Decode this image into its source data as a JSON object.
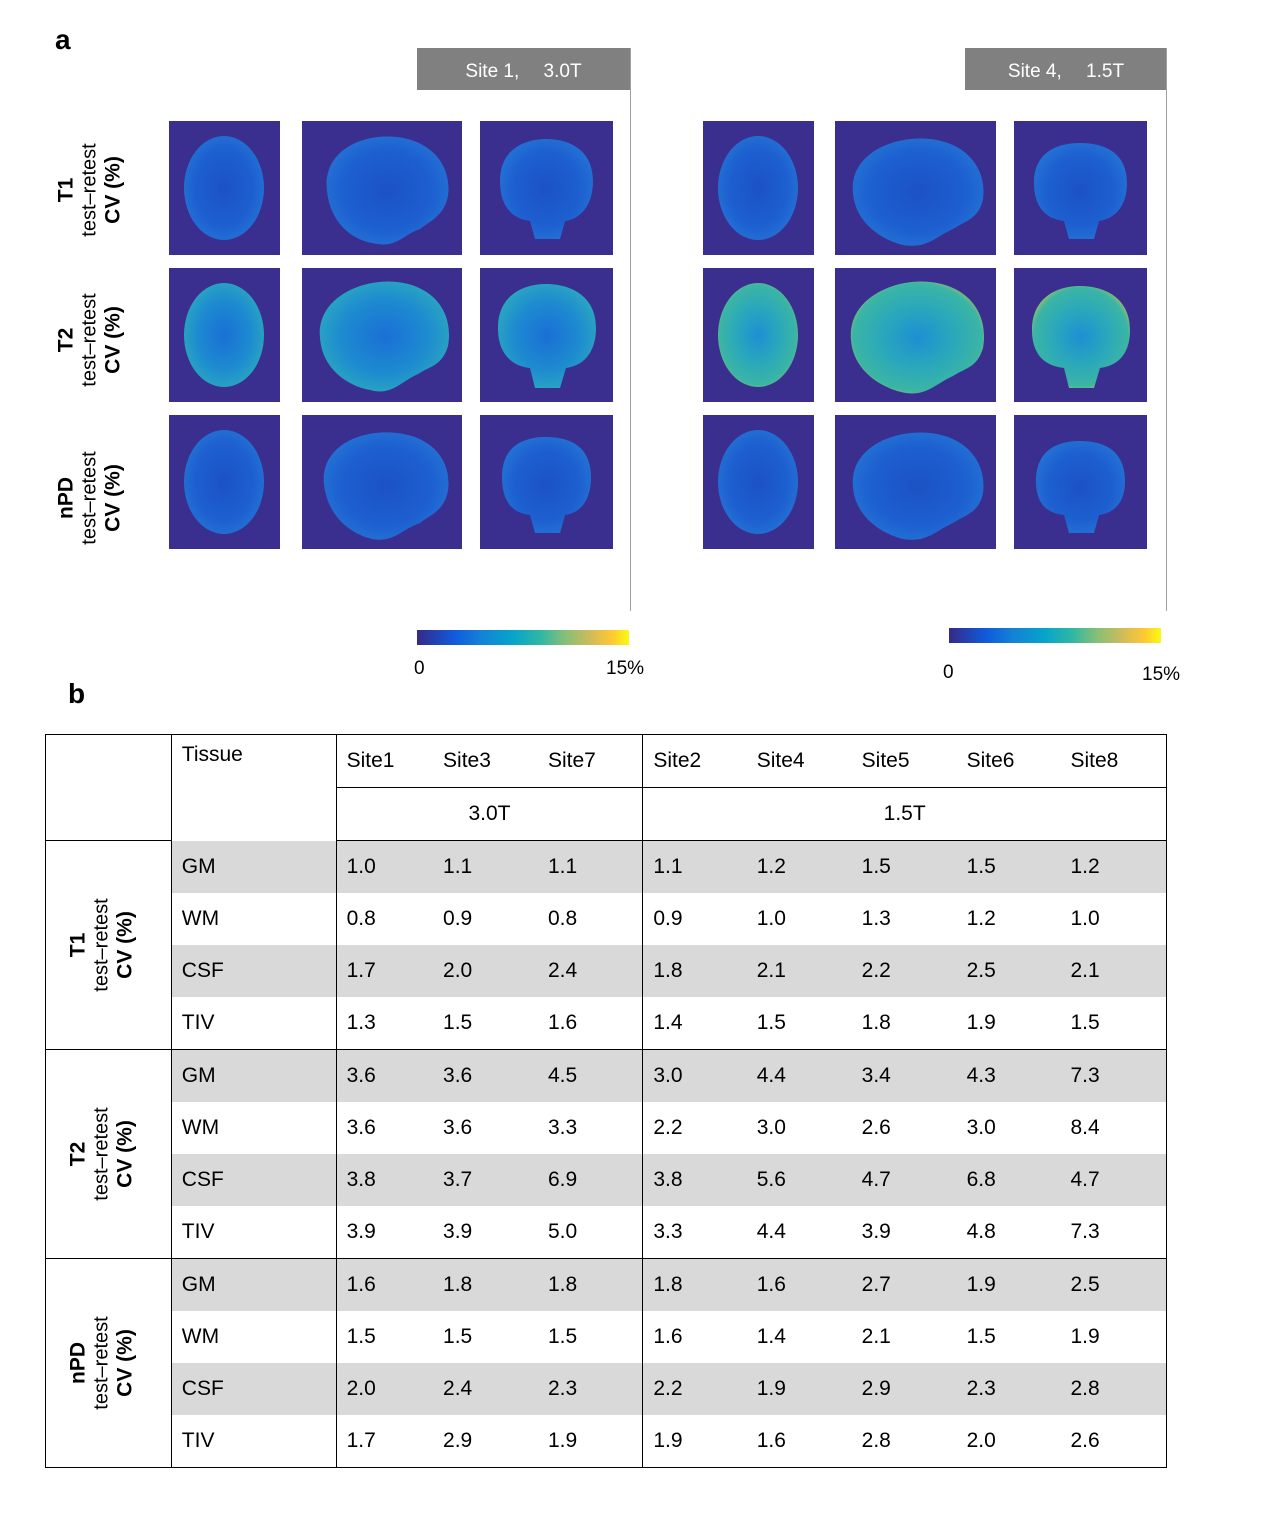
{
  "panel_a": {
    "letter": "a",
    "sites": [
      {
        "label": "Site 1,　 3.0T"
      },
      {
        "label": "Site 4,　 1.5T"
      }
    ],
    "rows": [
      {
        "modality": "T1",
        "line2": "test–retest",
        "line3": "CV (%)"
      },
      {
        "modality": "T2",
        "line2": "test–retest",
        "line3": "CV (%)"
      },
      {
        "modality": "nPD",
        "line2": "test–retest",
        "line3": "CV (%)"
      }
    ],
    "colorbar": {
      "min_label": "0",
      "max_label": "15%"
    }
  },
  "panel_b": {
    "letter": "b",
    "header": {
      "tissue": "Tissue",
      "sites": [
        "Site1",
        "Site3",
        "Site7",
        "Site2",
        "Site4",
        "Site5",
        "Site6",
        "Site8"
      ],
      "groups": [
        "3.0T",
        "1.5T"
      ]
    },
    "blocks": [
      {
        "modality": "T1",
        "line2": "test–retest",
        "line3": "CV (%)",
        "rows": [
          {
            "tissue": "GM",
            "values": [
              "1.0",
              "1.1",
              "1.1",
              "1.1",
              "1.2",
              "1.5",
              "1.5",
              "1.2"
            ]
          },
          {
            "tissue": "WM",
            "values": [
              "0.8",
              "0.9",
              "0.8",
              "0.9",
              "1.0",
              "1.3",
              "1.2",
              "1.0"
            ]
          },
          {
            "tissue": "CSF",
            "values": [
              "1.7",
              "2.0",
              "2.4",
              "1.8",
              "2.1",
              "2.2",
              "2.5",
              "2.1"
            ]
          },
          {
            "tissue": "TIV",
            "values": [
              "1.3",
              "1.5",
              "1.6",
              "1.4",
              "1.5",
              "1.8",
              "1.9",
              "1.5"
            ]
          }
        ]
      },
      {
        "modality": "T2",
        "line2": "test–retest",
        "line3": "CV (%)",
        "rows": [
          {
            "tissue": "GM",
            "values": [
              "3.6",
              "3.6",
              "4.5",
              "3.0",
              "4.4",
              "3.4",
              "4.3",
              "7.3"
            ]
          },
          {
            "tissue": "WM",
            "values": [
              "3.6",
              "3.6",
              "3.3",
              "2.2",
              "3.0",
              "2.6",
              "3.0",
              "8.4"
            ]
          },
          {
            "tissue": "CSF",
            "values": [
              "3.8",
              "3.7",
              "6.9",
              "3.8",
              "5.6",
              "4.7",
              "6.8",
              "4.7"
            ]
          },
          {
            "tissue": "TIV",
            "values": [
              "3.9",
              "3.9",
              "5.0",
              "3.3",
              "4.4",
              "3.9",
              "4.8",
              "7.3"
            ]
          }
        ]
      },
      {
        "modality": "nPD",
        "line2": "test–retest",
        "line3": "CV (%)",
        "rows": [
          {
            "tissue": "GM",
            "values": [
              "1.6",
              "1.8",
              "1.8",
              "1.8",
              "1.6",
              "2.7",
              "1.9",
              "2.5"
            ]
          },
          {
            "tissue": "WM",
            "values": [
              "1.5",
              "1.5",
              "1.5",
              "1.6",
              "1.4",
              "2.1",
              "1.5",
              "1.9"
            ]
          },
          {
            "tissue": "CSF",
            "values": [
              "2.0",
              "2.4",
              "2.3",
              "2.2",
              "1.9",
              "2.9",
              "2.3",
              "2.8"
            ]
          },
          {
            "tissue": "TIV",
            "values": [
              "1.7",
              "2.9",
              "1.9",
              "1.9",
              "1.6",
              "2.8",
              "2.0",
              "2.6"
            ]
          }
        ]
      }
    ]
  }
}
